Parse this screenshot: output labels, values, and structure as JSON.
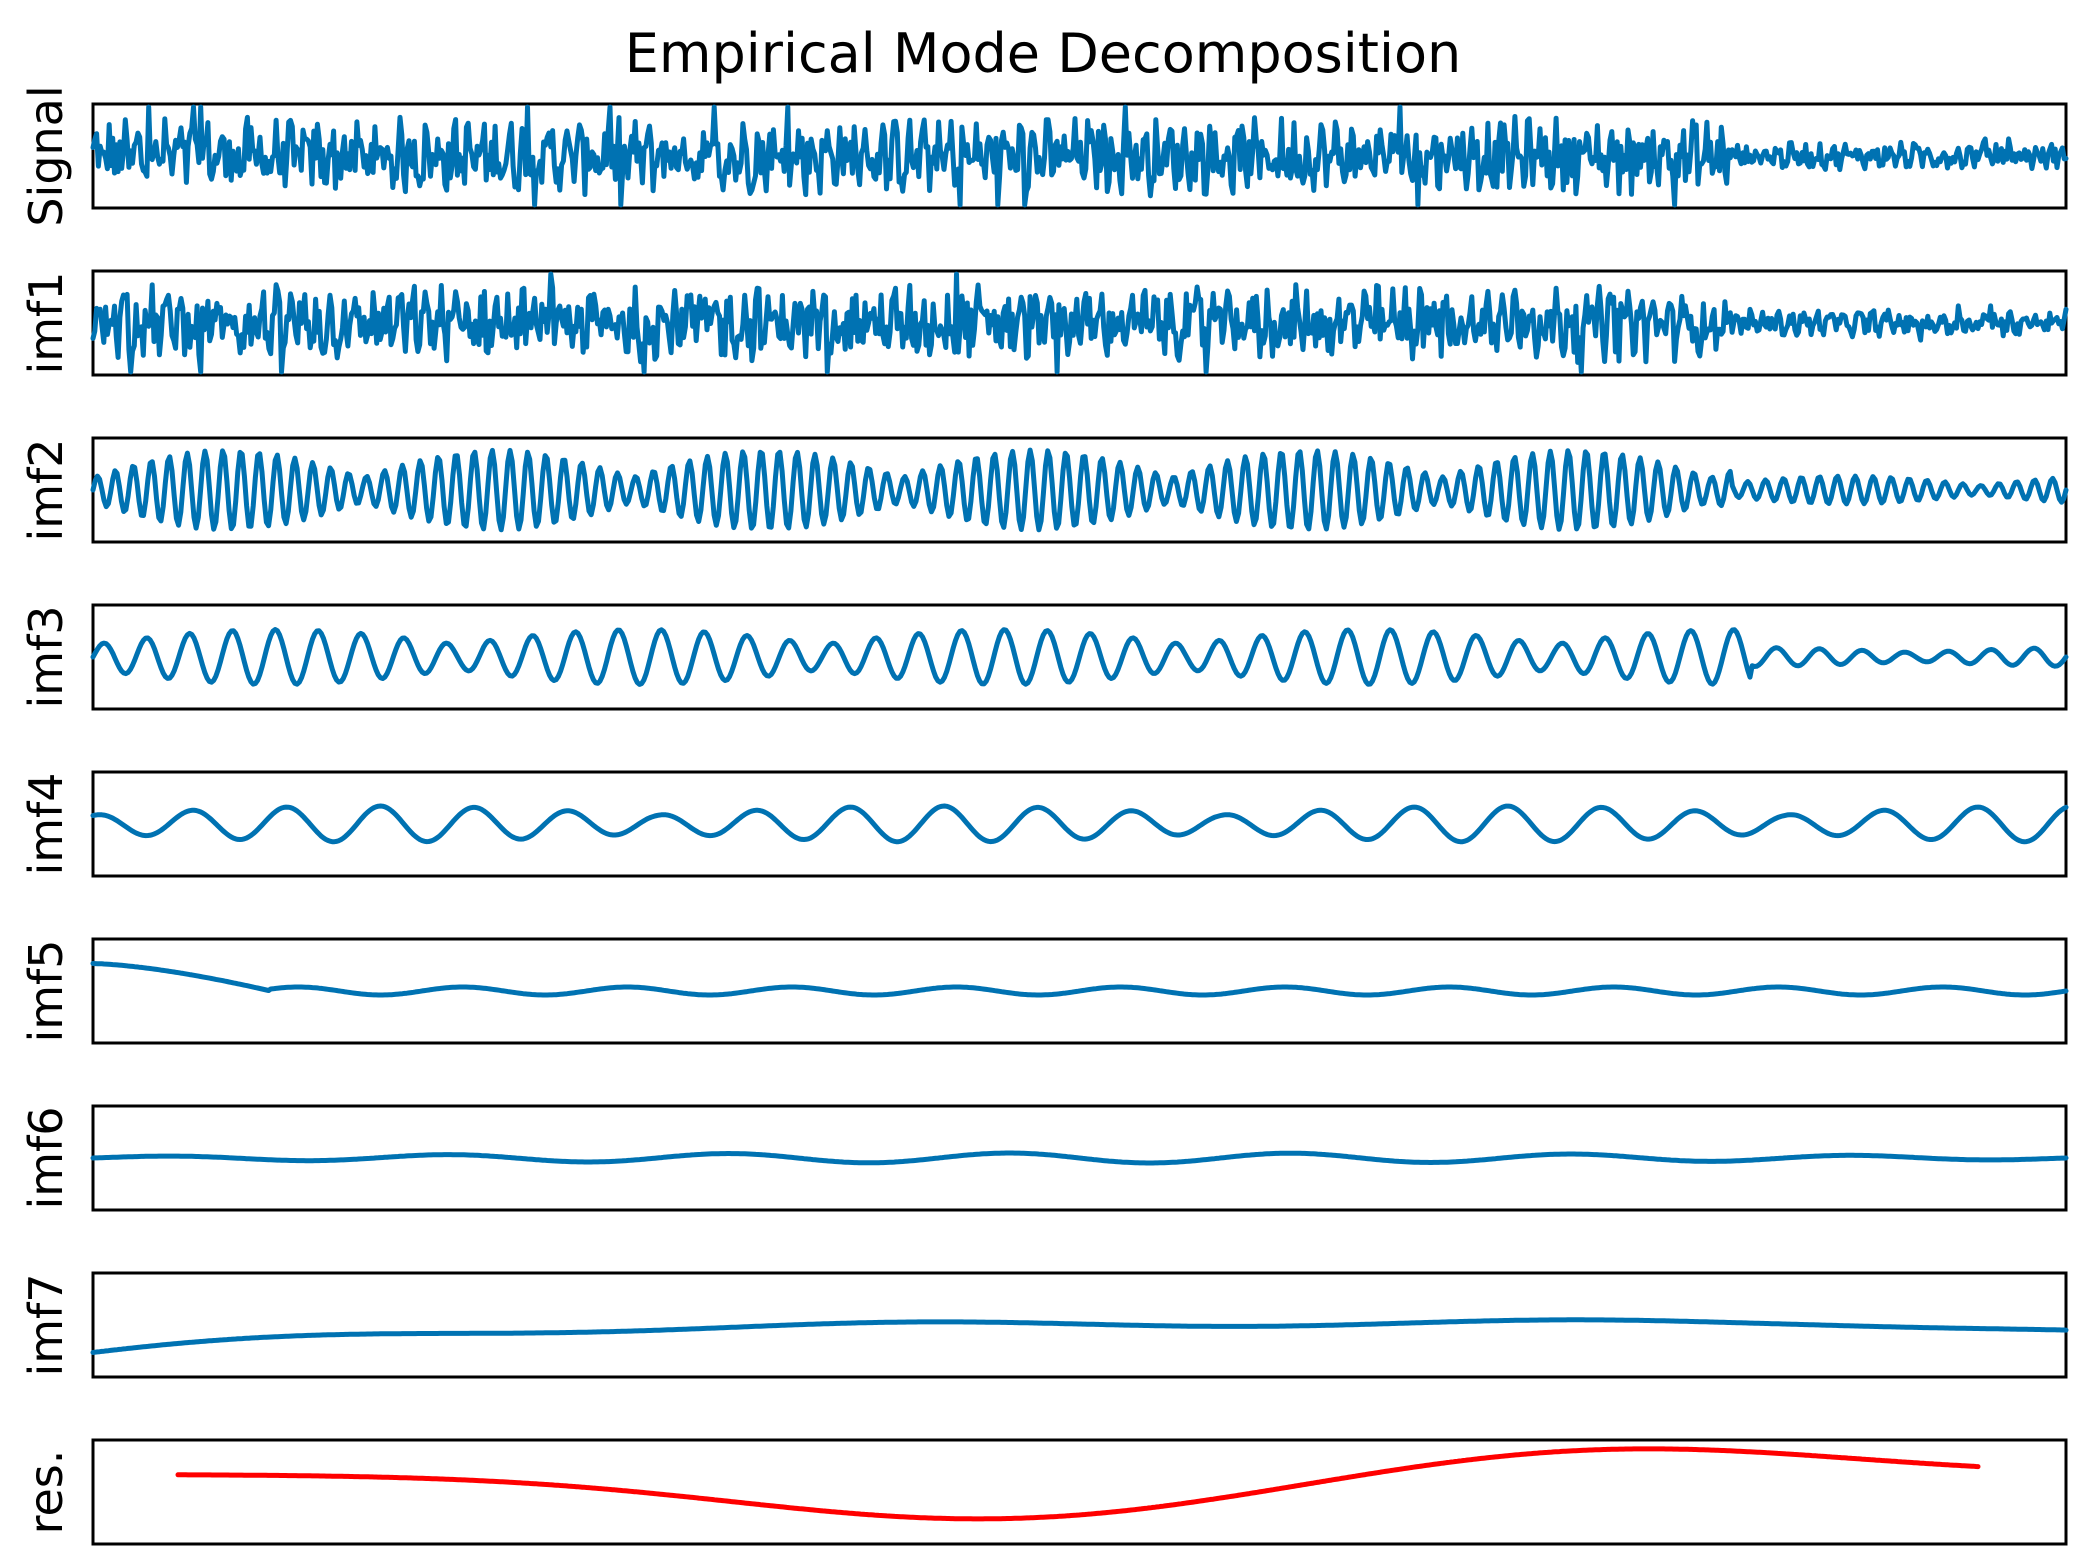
{
  "chart_data": {
    "type": "line",
    "title": "Empirical Mode Decomposition",
    "x_ticks_visible": false,
    "y_ticks_visible": false,
    "grid": false,
    "legend": "none",
    "panels": [
      {
        "label": "Signal",
        "color": "#0072b2",
        "kind": "noise-dense"
      },
      {
        "label": "imf1",
        "color": "#0072b2",
        "kind": "noise-dense"
      },
      {
        "label": "imf2",
        "color": "#0072b2",
        "kind": "oscillation-fast"
      },
      {
        "label": "imf3",
        "color": "#0072b2",
        "kind": "oscillation-medium"
      },
      {
        "label": "imf4",
        "color": "#0072b2",
        "kind": "oscillation-slow"
      },
      {
        "label": "imf5",
        "color": "#0072b2",
        "kind": "oscillation-slower"
      },
      {
        "label": "imf6",
        "color": "#0072b2",
        "kind": "oscillation-slowest"
      },
      {
        "label": "imf7",
        "color": "#0072b2",
        "kind": "trend"
      },
      {
        "label": "res.",
        "color": "#ff0000",
        "kind": "residual"
      }
    ]
  }
}
